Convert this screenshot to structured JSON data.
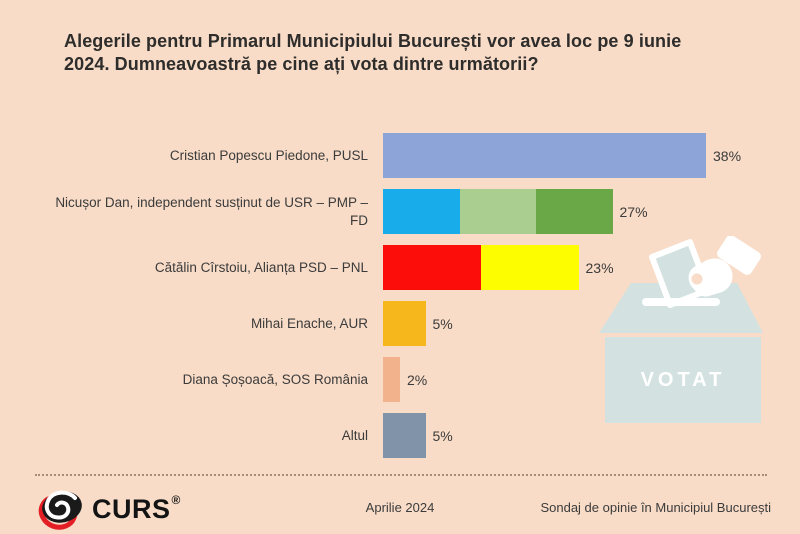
{
  "title_line1": "Alegerile pentru Primarul Municipiului București vor avea loc pe 9 iunie",
  "title_line2": "2024. Dumneavoastră pe cine ați vota dintre următorii?",
  "chart_data": {
    "type": "bar",
    "orientation": "horizontal",
    "title": "Alegerile pentru Primarul Municipiului București vor avea loc pe 9 iunie 2024. Dumneavoastră pe cine ați vota dintre următorii?",
    "categories": [
      "Cristian Popescu Piedone, PUSL",
      "Nicușor Dan, independent susținut de USR – PMP – FD",
      "Cătălin Cîrstoiu, Alianța PSD – PNL",
      "Mihai Enache, AUR",
      "Diana Șoșoacă, SOS România",
      "Altul"
    ],
    "values": [
      38,
      27,
      23,
      5,
      2,
      5
    ],
    "value_labels": [
      "38%",
      "27%",
      "23%",
      "5%",
      "2%",
      "5%"
    ],
    "xlim": [
      0,
      40
    ],
    "grid": false,
    "legend": false
  },
  "bars": [
    {
      "label": "Cristian Popescu Piedone, PUSL",
      "pct": "38%",
      "segments": [
        {
          "color": "#8da4d9",
          "value": 38
        }
      ]
    },
    {
      "label": "Nicușor Dan, independent susținut de USR – PMP – FD",
      "pct": "27%",
      "segments": [
        {
          "color": "#18acea",
          "value": 9
        },
        {
          "color": "#aacd90",
          "value": 9
        },
        {
          "color": "#6aa746",
          "value": 9
        }
      ]
    },
    {
      "label": "Cătălin Cîrstoiu, Alianța PSD – PNL",
      "pct": "23%",
      "segments": [
        {
          "color": "#fc0d0a",
          "value": 11.5
        },
        {
          "color": "#fdfd00",
          "value": 11.5
        }
      ]
    },
    {
      "label": "Mihai Enache, AUR",
      "pct": "5%",
      "segments": [
        {
          "color": "#f6b71c",
          "value": 5
        }
      ]
    },
    {
      "label": "Diana Șoșoacă, SOS România",
      "pct": "2%",
      "segments": [
        {
          "color": "#f2b28b",
          "value": 2
        }
      ]
    },
    {
      "label": "Altul",
      "pct": "5%",
      "segments": [
        {
          "color": "#8093a9",
          "value": 5
        }
      ]
    }
  ],
  "ballot_box": {
    "label": "VOTAT"
  },
  "footer": {
    "brand": "CURS",
    "registered_mark": "®",
    "center_text": "Aprilie 2024",
    "right_text": "Sondaj de opinie în Municipiul București"
  },
  "colors": {
    "background": "#f8dcc7",
    "text": "#3b3b3b",
    "ballot_box": "#d3e2e1",
    "logo_red": "#e31e24"
  }
}
